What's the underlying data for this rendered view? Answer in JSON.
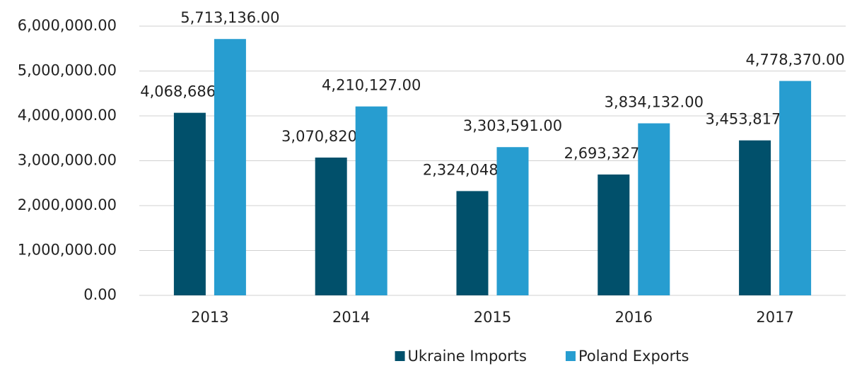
{
  "chart_data": {
    "type": "bar",
    "categories": [
      "2013",
      "2014",
      "2015",
      "2016",
      "2017"
    ],
    "series": [
      {
        "name": "Ukraine Imports",
        "color": "#01506b",
        "values": [
          4068686,
          3070820,
          2324048,
          2693327,
          3453817
        ],
        "value_labels": [
          "4,068,686.00",
          "3,070,820.00",
          "2,324,048.00",
          "2,693,327.00",
          "3,453,817.00"
        ]
      },
      {
        "name": "Poland Exports",
        "color": "#279dd0",
        "values": [
          5713136,
          4210127,
          3303591,
          3834132,
          4778370
        ],
        "value_labels": [
          "5,713,136.00",
          "4,210,127.00",
          "3,303,591.00",
          "3,834,132.00",
          "4,778,370.00"
        ]
      }
    ],
    "ylim": [
      0,
      6000000
    ],
    "yticks": [
      {
        "value": 0,
        "label": "0.00"
      },
      {
        "value": 1000000,
        "label": "1,000,000.00"
      },
      {
        "value": 2000000,
        "label": "2,000,000.00"
      },
      {
        "value": 3000000,
        "label": "3,000,000.00"
      },
      {
        "value": 4000000,
        "label": "4,000,000.00"
      },
      {
        "value": 5000000,
        "label": "5,000,000.00"
      },
      {
        "value": 6000000,
        "label": "6,000,000.00"
      }
    ],
    "grid": true,
    "legend": "bottom"
  }
}
